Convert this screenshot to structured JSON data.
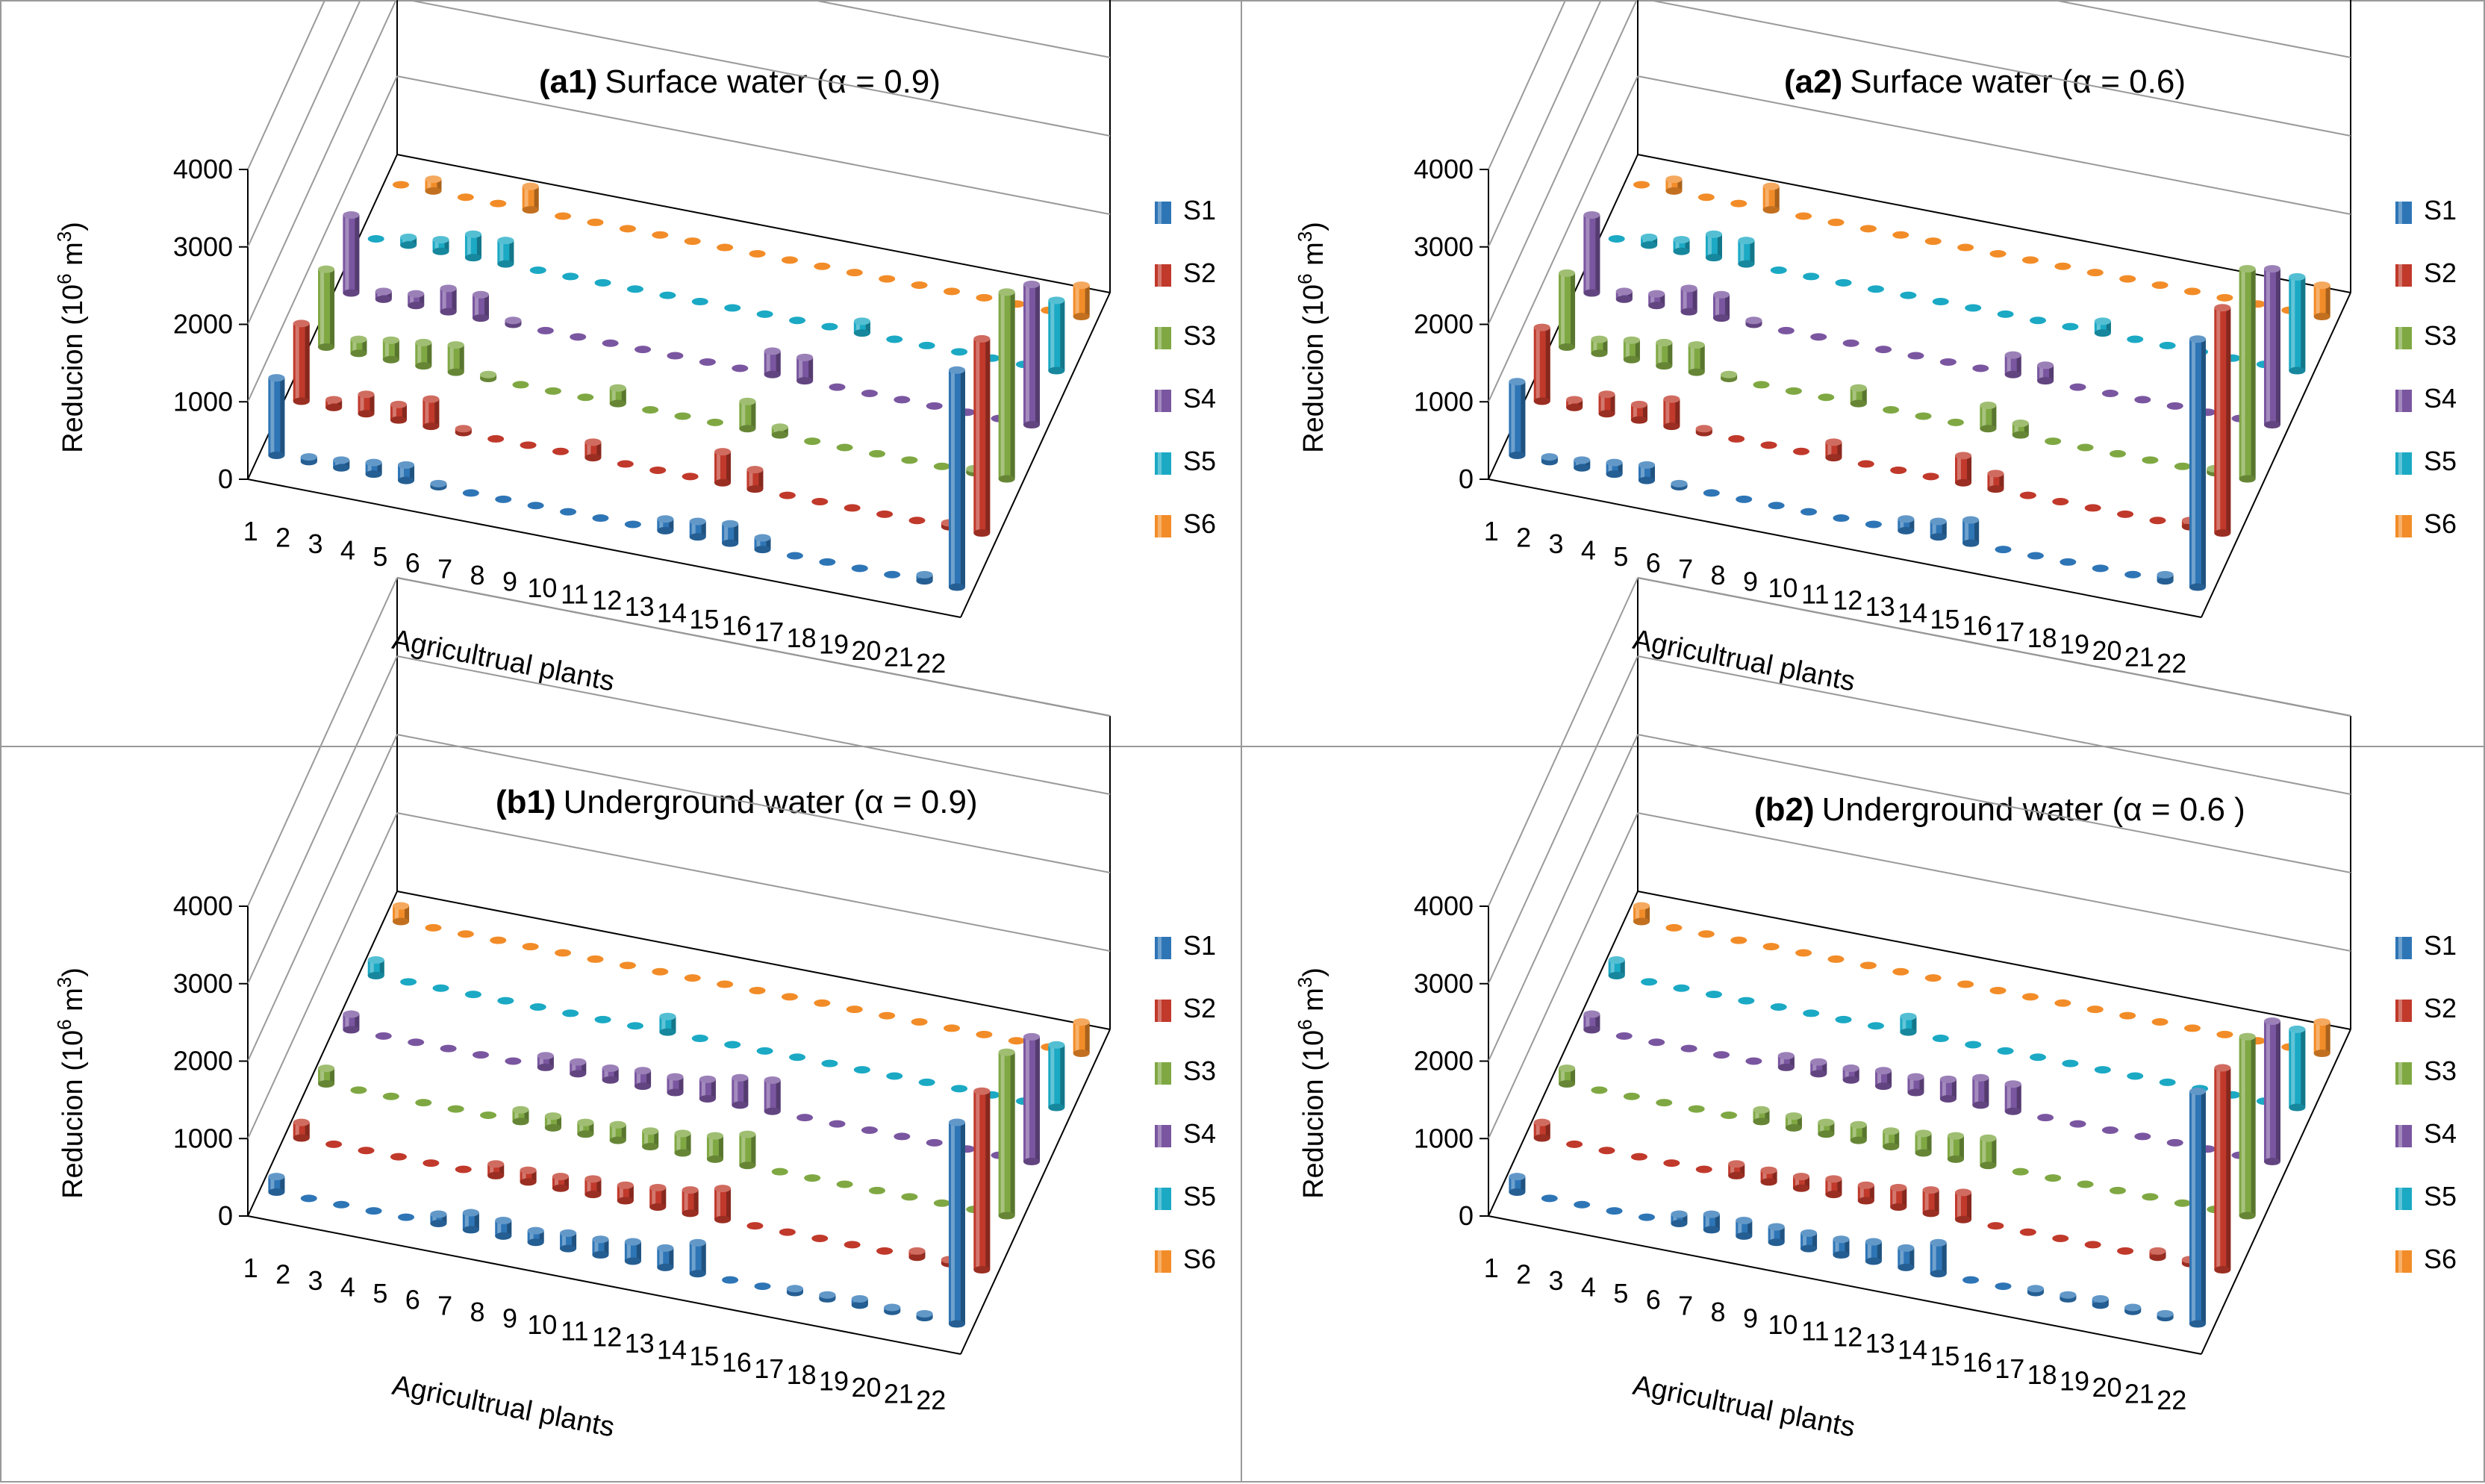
{
  "colors": {
    "S1": "#2E75B6",
    "S2": "#C0392B",
    "S3": "#7FA843",
    "S4": "#7A56A0",
    "S5": "#1BA9C4",
    "S6": "#F28C28",
    "grid": "#9a9a9a"
  },
  "chart_data": [
    {
      "type": "bar3d",
      "title_tag": "(a1)",
      "title": "Surface water (α = 0.9)",
      "ylabel": "Reducion (10",
      "ylabel_exp": "6",
      "ylabel_unit": " m",
      "ylabel_unit_exp": "3",
      "ylabel_close": ")",
      "xlabel": "Agricultrual plants",
      "ylim": [
        0,
        4000
      ],
      "yticks": [
        "0",
        "1000",
        "2000",
        "3000",
        "4000"
      ],
      "categories": [
        "1",
        "2",
        "3",
        "4",
        "5",
        "6",
        "7",
        "8",
        "9",
        "10",
        "11",
        "12",
        "13",
        "14",
        "15",
        "16",
        "17",
        "18",
        "19",
        "20",
        "21",
        "22"
      ],
      "series": [
        {
          "name": "S1",
          "values": [
            1000,
            60,
            100,
            150,
            200,
            40,
            0,
            0,
            0,
            0,
            0,
            0,
            150,
            200,
            250,
            150,
            0,
            0,
            0,
            0,
            80,
            2800
          ]
        },
        {
          "name": "S2",
          "values": [
            1000,
            100,
            250,
            200,
            350,
            50,
            0,
            0,
            0,
            200,
            0,
            0,
            0,
            400,
            250,
            0,
            0,
            0,
            0,
            0,
            50,
            2500
          ]
        },
        {
          "name": "S3",
          "values": [
            1000,
            180,
            250,
            300,
            350,
            50,
            0,
            0,
            0,
            200,
            0,
            0,
            0,
            350,
            100,
            0,
            0,
            0,
            0,
            0,
            50,
            2400
          ]
        },
        {
          "name": "S4",
          "values": [
            1000,
            100,
            150,
            300,
            300,
            50,
            0,
            0,
            0,
            0,
            0,
            0,
            0,
            300,
            300,
            0,
            0,
            0,
            0,
            0,
            0,
            1800
          ]
        },
        {
          "name": "S5",
          "values": [
            0,
            100,
            150,
            300,
            300,
            0,
            0,
            0,
            0,
            0,
            0,
            0,
            0,
            0,
            0,
            150,
            0,
            0,
            0,
            0,
            0,
            900
          ]
        },
        {
          "name": "S6",
          "values": [
            0,
            150,
            0,
            0,
            300,
            0,
            0,
            0,
            0,
            0,
            0,
            0,
            0,
            0,
            0,
            0,
            0,
            0,
            0,
            0,
            0,
            400
          ]
        }
      ]
    },
    {
      "type": "bar3d",
      "title_tag": "(a2)",
      "title": "Surface water (α = 0.6)",
      "ylabel": "Reducion (10",
      "ylabel_exp": "6",
      "ylabel_unit": " m",
      "ylabel_unit_exp": "3",
      "ylabel_close": ")",
      "xlabel": "Agricultrual plants",
      "ylim": [
        0,
        4000
      ],
      "yticks": [
        "0",
        "1000",
        "2000",
        "3000",
        "4000"
      ],
      "categories": [
        "1",
        "2",
        "3",
        "4",
        "5",
        "6",
        "7",
        "8",
        "9",
        "10",
        "11",
        "12",
        "13",
        "14",
        "15",
        "16",
        "17",
        "18",
        "19",
        "20",
        "21",
        "22"
      ],
      "series": [
        {
          "name": "S1",
          "values": [
            950,
            60,
            100,
            150,
            200,
            40,
            0,
            0,
            0,
            0,
            0,
            0,
            150,
            200,
            300,
            0,
            0,
            0,
            0,
            0,
            80,
            3200
          ]
        },
        {
          "name": "S2",
          "values": [
            950,
            100,
            250,
            200,
            350,
            50,
            0,
            0,
            0,
            200,
            0,
            0,
            0,
            350,
            200,
            0,
            0,
            0,
            0,
            0,
            80,
            2900
          ]
        },
        {
          "name": "S3",
          "values": [
            950,
            180,
            250,
            300,
            350,
            50,
            0,
            0,
            0,
            200,
            0,
            0,
            0,
            300,
            150,
            0,
            0,
            0,
            0,
            0,
            50,
            2700
          ]
        },
        {
          "name": "S4",
          "values": [
            1000,
            100,
            150,
            300,
            300,
            50,
            0,
            0,
            0,
            0,
            0,
            0,
            0,
            250,
            200,
            0,
            0,
            0,
            0,
            0,
            0,
            2000
          ]
        },
        {
          "name": "S5",
          "values": [
            0,
            100,
            150,
            300,
            300,
            0,
            0,
            0,
            0,
            0,
            0,
            0,
            0,
            0,
            0,
            150,
            0,
            0,
            0,
            0,
            0,
            1200
          ]
        },
        {
          "name": "S6",
          "values": [
            0,
            150,
            0,
            0,
            300,
            0,
            0,
            0,
            0,
            0,
            0,
            0,
            0,
            0,
            0,
            0,
            0,
            0,
            0,
            0,
            0,
            400
          ]
        }
      ]
    },
    {
      "type": "bar3d",
      "title_tag": "(b1)",
      "title": "Underground water (α = 0.9)",
      "ylabel": "Reducion (10",
      "ylabel_exp": "6",
      "ylabel_unit": " m",
      "ylabel_unit_exp": "3",
      "ylabel_close": ")",
      "xlabel": "Agricultrual plants",
      "ylim": [
        0,
        4000
      ],
      "yticks": [
        "0",
        "1000",
        "2000",
        "3000",
        "4000"
      ],
      "categories": [
        "1",
        "2",
        "3",
        "4",
        "5",
        "6",
        "7",
        "8",
        "9",
        "10",
        "11",
        "12",
        "13",
        "14",
        "15",
        "16",
        "17",
        "18",
        "19",
        "20",
        "21",
        "22"
      ],
      "series": [
        {
          "name": "S1",
          "values": [
            200,
            0,
            0,
            0,
            0,
            120,
            220,
            200,
            150,
            200,
            200,
            250,
            250,
            400,
            0,
            0,
            50,
            50,
            80,
            50,
            50,
            2600
          ]
        },
        {
          "name": "S2",
          "values": [
            200,
            0,
            0,
            0,
            0,
            0,
            150,
            150,
            150,
            200,
            200,
            250,
            300,
            400,
            0,
            0,
            0,
            0,
            0,
            80,
            50,
            2300
          ]
        },
        {
          "name": "S3",
          "values": [
            200,
            0,
            0,
            0,
            0,
            0,
            150,
            150,
            150,
            200,
            200,
            250,
            300,
            400,
            0,
            0,
            0,
            0,
            0,
            0,
            0,
            2100
          ]
        },
        {
          "name": "S4",
          "values": [
            200,
            0,
            0,
            0,
            0,
            0,
            150,
            150,
            150,
            200,
            200,
            250,
            350,
            400,
            0,
            0,
            0,
            0,
            0,
            0,
            0,
            1600
          ]
        },
        {
          "name": "S5",
          "values": [
            200,
            0,
            0,
            0,
            0,
            0,
            0,
            0,
            0,
            200,
            0,
            0,
            0,
            0,
            0,
            0,
            0,
            0,
            0,
            0,
            0,
            800
          ]
        },
        {
          "name": "S6",
          "values": [
            200,
            0,
            0,
            0,
            0,
            0,
            0,
            0,
            0,
            0,
            0,
            0,
            0,
            0,
            0,
            0,
            0,
            0,
            0,
            0,
            0,
            400
          ]
        }
      ]
    },
    {
      "type": "bar3d",
      "title_tag": "(b2)",
      "title": "Underground water (α = 0.6 )",
      "ylabel": "Reducion (10",
      "ylabel_exp": "6",
      "ylabel_unit": " m",
      "ylabel_unit_exp": "3",
      "ylabel_close": ")",
      "xlabel": "Agricultrual plants",
      "ylim": [
        0,
        4000
      ],
      "yticks": [
        "0",
        "1000",
        "2000",
        "3000",
        "4000"
      ],
      "categories": [
        "1",
        "2",
        "3",
        "4",
        "5",
        "6",
        "7",
        "8",
        "9",
        "10",
        "11",
        "12",
        "13",
        "14",
        "15",
        "16",
        "17",
        "18",
        "19",
        "20",
        "21",
        "22"
      ],
      "series": [
        {
          "name": "S1",
          "values": [
            200,
            0,
            0,
            0,
            0,
            120,
            200,
            200,
            200,
            200,
            200,
            250,
            250,
            400,
            0,
            0,
            50,
            50,
            80,
            50,
            50,
            3000
          ]
        },
        {
          "name": "S2",
          "values": [
            200,
            0,
            0,
            0,
            0,
            0,
            150,
            150,
            150,
            200,
            200,
            250,
            300,
            350,
            0,
            0,
            0,
            0,
            0,
            80,
            50,
            2600
          ]
        },
        {
          "name": "S3",
          "values": [
            200,
            0,
            0,
            0,
            0,
            0,
            150,
            150,
            150,
            200,
            200,
            250,
            300,
            350,
            0,
            0,
            0,
            0,
            0,
            0,
            0,
            2300
          ]
        },
        {
          "name": "S4",
          "values": [
            200,
            0,
            0,
            0,
            0,
            0,
            150,
            150,
            150,
            200,
            200,
            250,
            350,
            350,
            0,
            0,
            0,
            0,
            0,
            0,
            0,
            1800
          ]
        },
        {
          "name": "S5",
          "values": [
            200,
            0,
            0,
            0,
            0,
            0,
            0,
            0,
            0,
            200,
            0,
            0,
            0,
            0,
            0,
            0,
            0,
            0,
            0,
            0,
            0,
            1000
          ]
        },
        {
          "name": "S6",
          "values": [
            200,
            0,
            0,
            0,
            0,
            0,
            0,
            0,
            0,
            0,
            0,
            0,
            0,
            0,
            0,
            0,
            0,
            0,
            0,
            0,
            0,
            400
          ]
        }
      ]
    }
  ]
}
